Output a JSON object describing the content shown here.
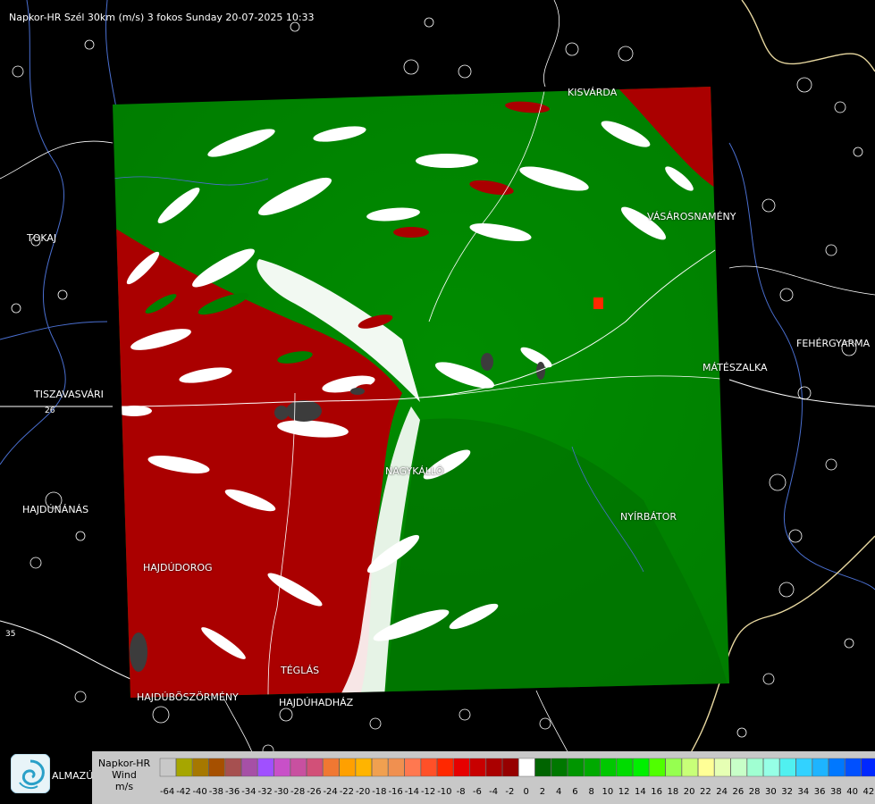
{
  "header": {
    "title": "Napkor-HR Szél 30km (m/s) 3 fokos Sunday 20-07-2025 10:33"
  },
  "towns": [
    {
      "id": "kisvarda",
      "label": "KISVÁRDA"
    },
    {
      "id": "tokaj",
      "label": "TOKAJ"
    },
    {
      "id": "vasarosnameny",
      "label": "VÁSÁROSNAMÉNY"
    },
    {
      "id": "fehergyarmat",
      "label": "FEHÉRGYARMA"
    },
    {
      "id": "mateszalka",
      "label": "MÁTÉSZALKA"
    },
    {
      "id": "tiszavasvari",
      "label": "TISZAVASVÁRI"
    },
    {
      "id": "nagykallo",
      "label": "NAGYKÁLLÓ"
    },
    {
      "id": "hajdunanas",
      "label": "HAJDÚNÁNÁS"
    },
    {
      "id": "nyirbator",
      "label": "NYÍRBÁTOR"
    },
    {
      "id": "hajdudorog",
      "label": "HAJDÚDOROG"
    },
    {
      "id": "teglas",
      "label": "TÉGLÁS"
    },
    {
      "id": "hajduboszormeny",
      "label": "HAJDÚBÖSZÖRMÉNY"
    },
    {
      "id": "hajduhadhaz",
      "label": "HAJDÚHADHÁZ"
    },
    {
      "id": "almazujvaros",
      "label": "ALMAZÚJVÁR"
    }
  ],
  "roads": [
    {
      "id": "road-26",
      "label": "26"
    },
    {
      "id": "road-35",
      "label": "35"
    }
  ],
  "legend": {
    "line1": "Napkor-HR",
    "line2": "Wind",
    "line3": "m/s",
    "ticks": [
      "-64",
      "-42",
      "-40",
      "-38",
      "-36",
      "-34",
      "-32",
      "-30",
      "-28",
      "-26",
      "-24",
      "-22",
      "-20",
      "-18",
      "-16",
      "-14",
      "-12",
      "-10",
      "-8",
      "-6",
      "-4",
      "-2",
      "0",
      "2",
      "4",
      "6",
      "8",
      "10",
      "12",
      "14",
      "16",
      "18",
      "20",
      "22",
      "24",
      "26",
      "28",
      "30",
      "32",
      "34",
      "36",
      "38",
      "40",
      "42"
    ],
    "colors": [
      "#c8c8c8",
      "#a6a600",
      "#a67800",
      "#a65000",
      "#a65050",
      "#a650a6",
      "#a050ff",
      "#c850c8",
      "#c850a0",
      "#d25078",
      "#f07832",
      "#ffa000",
      "#ffb400",
      "#f0a050",
      "#f09050",
      "#ff7850",
      "#ff5028",
      "#ff2800",
      "#e60000",
      "#c80000",
      "#aa0000",
      "#960000",
      "#ffffff",
      "#006400",
      "#007800",
      "#009600",
      "#00aa00",
      "#00c800",
      "#00dc00",
      "#00f000",
      "#50ff00",
      "#96ff50",
      "#c8ff78",
      "#ffff96",
      "#e6ffb4",
      "#c8ffc8",
      "#a0ffd2",
      "#96ffe6",
      "#50f0f0",
      "#32d2ff",
      "#1eb4ff",
      "#0078ff",
      "#0050ff",
      "#0028ff"
    ]
  },
  "radar_colors": {
    "inbound_red": "#aa0000",
    "outbound_green": "#008000",
    "outbound_green_dark": "#006400",
    "clutter": "#3c3c3c"
  }
}
